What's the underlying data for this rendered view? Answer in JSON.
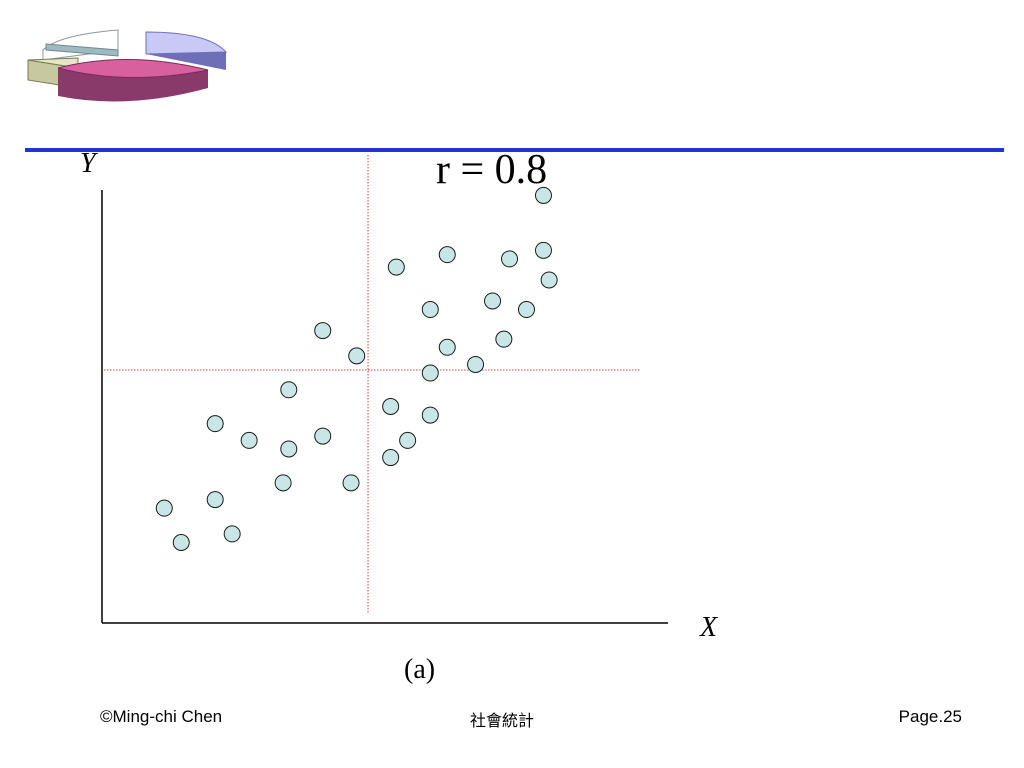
{
  "footer": {
    "author": "©Ming-chi Chen",
    "course": "社會統計",
    "page": "Page.25"
  },
  "logo": {
    "icon": "pie-chart-icon"
  },
  "colors": {
    "accent_rule": "#1f35d6",
    "point_fill": "#c8e6e6",
    "reference_line": "#e84040"
  },
  "chart_data": {
    "type": "scatter",
    "title": "r = 0.8",
    "caption": "(a)",
    "xlabel": "X",
    "ylabel": "Y",
    "xlim": [
      0,
      100
    ],
    "ylim": [
      0,
      100
    ],
    "grid": false,
    "reference_lines": {
      "x_mean": 47,
      "y_mean": 57.8
    },
    "points": [
      {
        "x": 11,
        "y": 25.6
      },
      {
        "x": 14,
        "y": 17.6
      },
      {
        "x": 20,
        "y": 27.6
      },
      {
        "x": 23,
        "y": 19.6
      },
      {
        "x": 20,
        "y": 45.3
      },
      {
        "x": 26,
        "y": 41.4
      },
      {
        "x": 32,
        "y": 31.5
      },
      {
        "x": 33,
        "y": 39.4
      },
      {
        "x": 33,
        "y": 53.2
      },
      {
        "x": 39,
        "y": 42.4
      },
      {
        "x": 39,
        "y": 67.0
      },
      {
        "x": 44,
        "y": 31.5
      },
      {
        "x": 45,
        "y": 61.1
      },
      {
        "x": 51,
        "y": 37.4
      },
      {
        "x": 51,
        "y": 49.3
      },
      {
        "x": 52,
        "y": 81.8
      },
      {
        "x": 54,
        "y": 41.4
      },
      {
        "x": 58,
        "y": 47.3
      },
      {
        "x": 58,
        "y": 57.1
      },
      {
        "x": 58,
        "y": 71.9
      },
      {
        "x": 61,
        "y": 63.1
      },
      {
        "x": 61,
        "y": 84.7
      },
      {
        "x": 66,
        "y": 59.1
      },
      {
        "x": 69,
        "y": 73.9
      },
      {
        "x": 71,
        "y": 65.0
      },
      {
        "x": 72,
        "y": 83.7
      },
      {
        "x": 75,
        "y": 71.9
      },
      {
        "x": 78,
        "y": 85.7
      },
      {
        "x": 78,
        "y": 98.5
      },
      {
        "x": 79,
        "y": 78.8
      }
    ]
  }
}
